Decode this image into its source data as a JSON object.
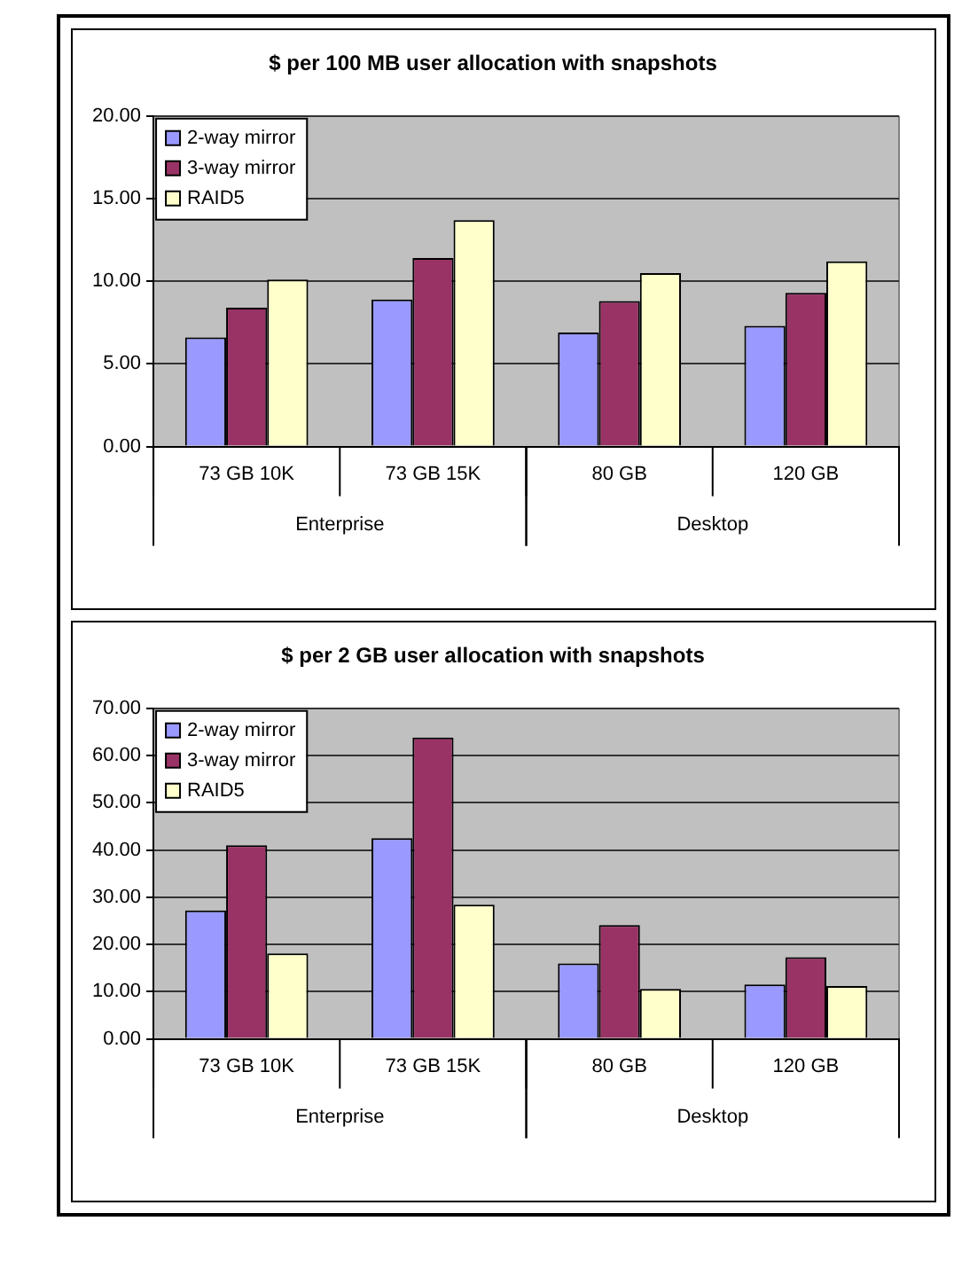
{
  "chart_data": [
    {
      "type": "bar",
      "title": "$ per 100 MB user allocation with snapshots",
      "categories": [
        "73 GB 10K",
        "73 GB 15K",
        "80 GB",
        "120 GB"
      ],
      "annotations": [
        "Enterprise",
        "Desktop"
      ],
      "series": [
        {
          "name": "2-way mirror",
          "color": "#9999ff",
          "values": [
            6.6,
            8.9,
            6.9,
            7.3
          ]
        },
        {
          "name": "3-way mirror",
          "color": "#993366",
          "values": [
            8.4,
            11.4,
            8.8,
            9.3
          ]
        },
        {
          "name": "RAID5",
          "color": "#ffffcc",
          "values": [
            10.1,
            13.7,
            10.5,
            11.2
          ]
        }
      ],
      "ylim": [
        0,
        20
      ],
      "yticks": [
        {
          "value": 0,
          "label": "0.00"
        },
        {
          "value": 5,
          "label": "5.00"
        },
        {
          "value": 10,
          "label": "10.00"
        },
        {
          "value": 15,
          "label": "15.00"
        },
        {
          "value": 20,
          "label": "20.00"
        }
      ],
      "grid": "y",
      "legend": "top left"
    },
    {
      "type": "bar",
      "title": "$ per 2 GB user allocation with snapshots",
      "categories": [
        "73 GB 10K",
        "73 GB 15K",
        "80 GB",
        "120 GB"
      ],
      "annotations": [
        "Enterprise",
        "Desktop"
      ],
      "series": [
        {
          "name": "2-way mirror",
          "color": "#9999ff",
          "values": [
            27.2,
            42.5,
            16.0,
            11.5
          ]
        },
        {
          "name": "3-way mirror",
          "color": "#993366",
          "values": [
            41,
            63.8,
            24.1,
            17.3
          ]
        },
        {
          "name": "RAID5",
          "color": "#ffffcc",
          "values": [
            18.1,
            28.4,
            10.6,
            11.2
          ]
        }
      ],
      "ylim": [
        0,
        70
      ],
      "yticks": [
        {
          "value": 0,
          "label": "0.00"
        },
        {
          "value": 10,
          "label": "10.00"
        },
        {
          "value": 20,
          "label": "20.00"
        },
        {
          "value": 30,
          "label": "30.00"
        },
        {
          "value": 40,
          "label": "40.00"
        },
        {
          "value": 50,
          "label": "50.00"
        },
        {
          "value": 60,
          "label": "60.00"
        },
        {
          "value": 70,
          "label": "70.00"
        }
      ],
      "grid": "y",
      "legend": "top left"
    }
  ]
}
